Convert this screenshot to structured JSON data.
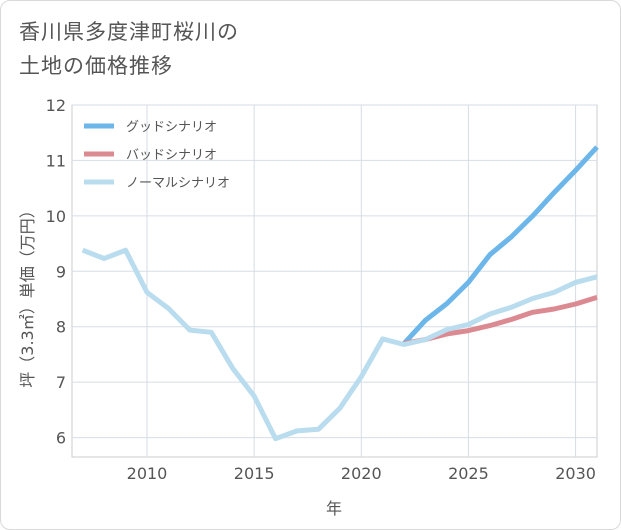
{
  "title_lines": [
    "香川県多度津町桜川の",
    "土地の価格推移"
  ],
  "chart_data": {
    "type": "line",
    "title": "香川県多度津町桜川の土地の価格推移",
    "xlabel": "年",
    "ylabel": "坪（3.3㎡）単価（万円）",
    "xlim": [
      2006.5,
      2031
    ],
    "ylim": [
      5.65,
      12
    ],
    "xticks": [
      2010,
      2015,
      2020,
      2025,
      2030
    ],
    "yticks": [
      6,
      7,
      8,
      9,
      10,
      11,
      12
    ],
    "grid": true,
    "legend_position": "top-left",
    "series": [
      {
        "name": "グッドシナリオ",
        "color": "#6cb6ea",
        "points": [
          [
            2022,
            7.7
          ],
          [
            2023,
            8.12
          ],
          [
            2024,
            8.42
          ],
          [
            2025,
            8.8
          ],
          [
            2026,
            9.3
          ],
          [
            2027,
            9.62
          ],
          [
            2028,
            10.0
          ],
          [
            2029,
            10.42
          ],
          [
            2030,
            10.82
          ],
          [
            2031,
            11.24
          ]
        ]
      },
      {
        "name": "バッドシナリオ",
        "color": "#dc8a92",
        "points": [
          [
            2022,
            7.7
          ],
          [
            2023,
            7.77
          ],
          [
            2024,
            7.87
          ],
          [
            2025,
            7.93
          ],
          [
            2026,
            8.02
          ],
          [
            2027,
            8.13
          ],
          [
            2028,
            8.26
          ],
          [
            2029,
            8.32
          ],
          [
            2030,
            8.41
          ],
          [
            2031,
            8.53
          ]
        ]
      },
      {
        "name": "ノーマルシナリオ",
        "color": "#b9dcee",
        "points": [
          [
            2007,
            9.38
          ],
          [
            2008,
            9.23
          ],
          [
            2009,
            9.38
          ],
          [
            2010,
            8.62
          ],
          [
            2011,
            8.33
          ],
          [
            2012,
            7.94
          ],
          [
            2013,
            7.9
          ],
          [
            2014,
            7.25
          ],
          [
            2015,
            6.75
          ],
          [
            2016,
            5.98
          ],
          [
            2017,
            6.12
          ],
          [
            2018,
            6.15
          ],
          [
            2019,
            6.53
          ],
          [
            2020,
            7.1
          ],
          [
            2021,
            7.78
          ],
          [
            2022,
            7.68
          ],
          [
            2023,
            7.77
          ],
          [
            2024,
            7.95
          ],
          [
            2025,
            8.04
          ],
          [
            2026,
            8.23
          ],
          [
            2027,
            8.35
          ],
          [
            2028,
            8.51
          ],
          [
            2029,
            8.62
          ],
          [
            2030,
            8.8
          ],
          [
            2031,
            8.9
          ]
        ]
      }
    ]
  }
}
